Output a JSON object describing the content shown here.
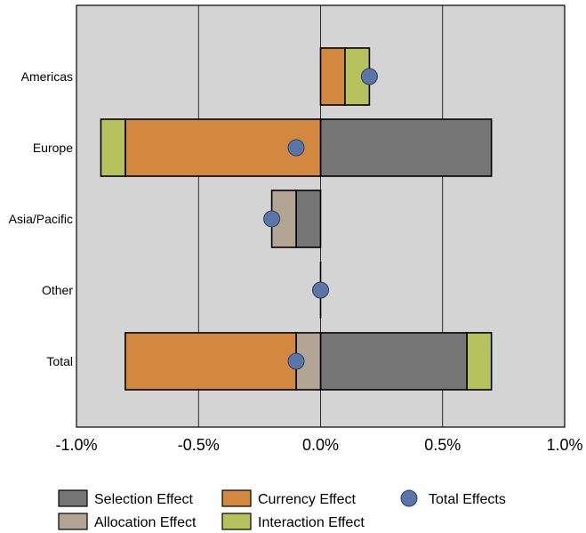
{
  "chart_data": {
    "type": "bar",
    "orientation": "horizontal",
    "stacked": "diverging",
    "categories": [
      "Americas",
      "Europe",
      "Asia/Pacific",
      "Other",
      "Total"
    ],
    "series": [
      {
        "name": "Selection Effect",
        "color": "#767676",
        "values": [
          0.0,
          0.7,
          -0.1,
          0.0,
          0.6
        ]
      },
      {
        "name": "Allocation Effect",
        "color": "#b2a594",
        "values": [
          0.0,
          0.0,
          -0.1,
          0.0,
          -0.1
        ]
      },
      {
        "name": "Currency Effect",
        "color": "#d2893f",
        "values": [
          0.1,
          -0.8,
          0.0,
          0.0,
          -0.7
        ]
      },
      {
        "name": "Interaction Effect",
        "color": "#b5c25e",
        "values": [
          0.1,
          -0.1,
          0.0,
          0.0,
          0.1
        ]
      }
    ],
    "total_effects": {
      "name": "Total Effects",
      "color": "#5b75a6",
      "values": [
        0.2,
        -0.1,
        -0.2,
        0.0,
        -0.1
      ]
    },
    "xlim": [
      -1.0,
      1.0
    ],
    "x_ticks": [
      -1.0,
      -0.5,
      0.0,
      0.5,
      1.0
    ],
    "x_tick_labels": [
      "-1.0%",
      "-0.5%",
      "0.0%",
      "0.5%",
      "1.0%"
    ],
    "grid": "vertical",
    "plot_background": "#d4d4d4",
    "legend_position": "bottom",
    "legend_order": [
      "Selection Effect",
      "Currency Effect",
      "Total Effects",
      "Allocation Effect",
      "Interaction Effect"
    ]
  }
}
